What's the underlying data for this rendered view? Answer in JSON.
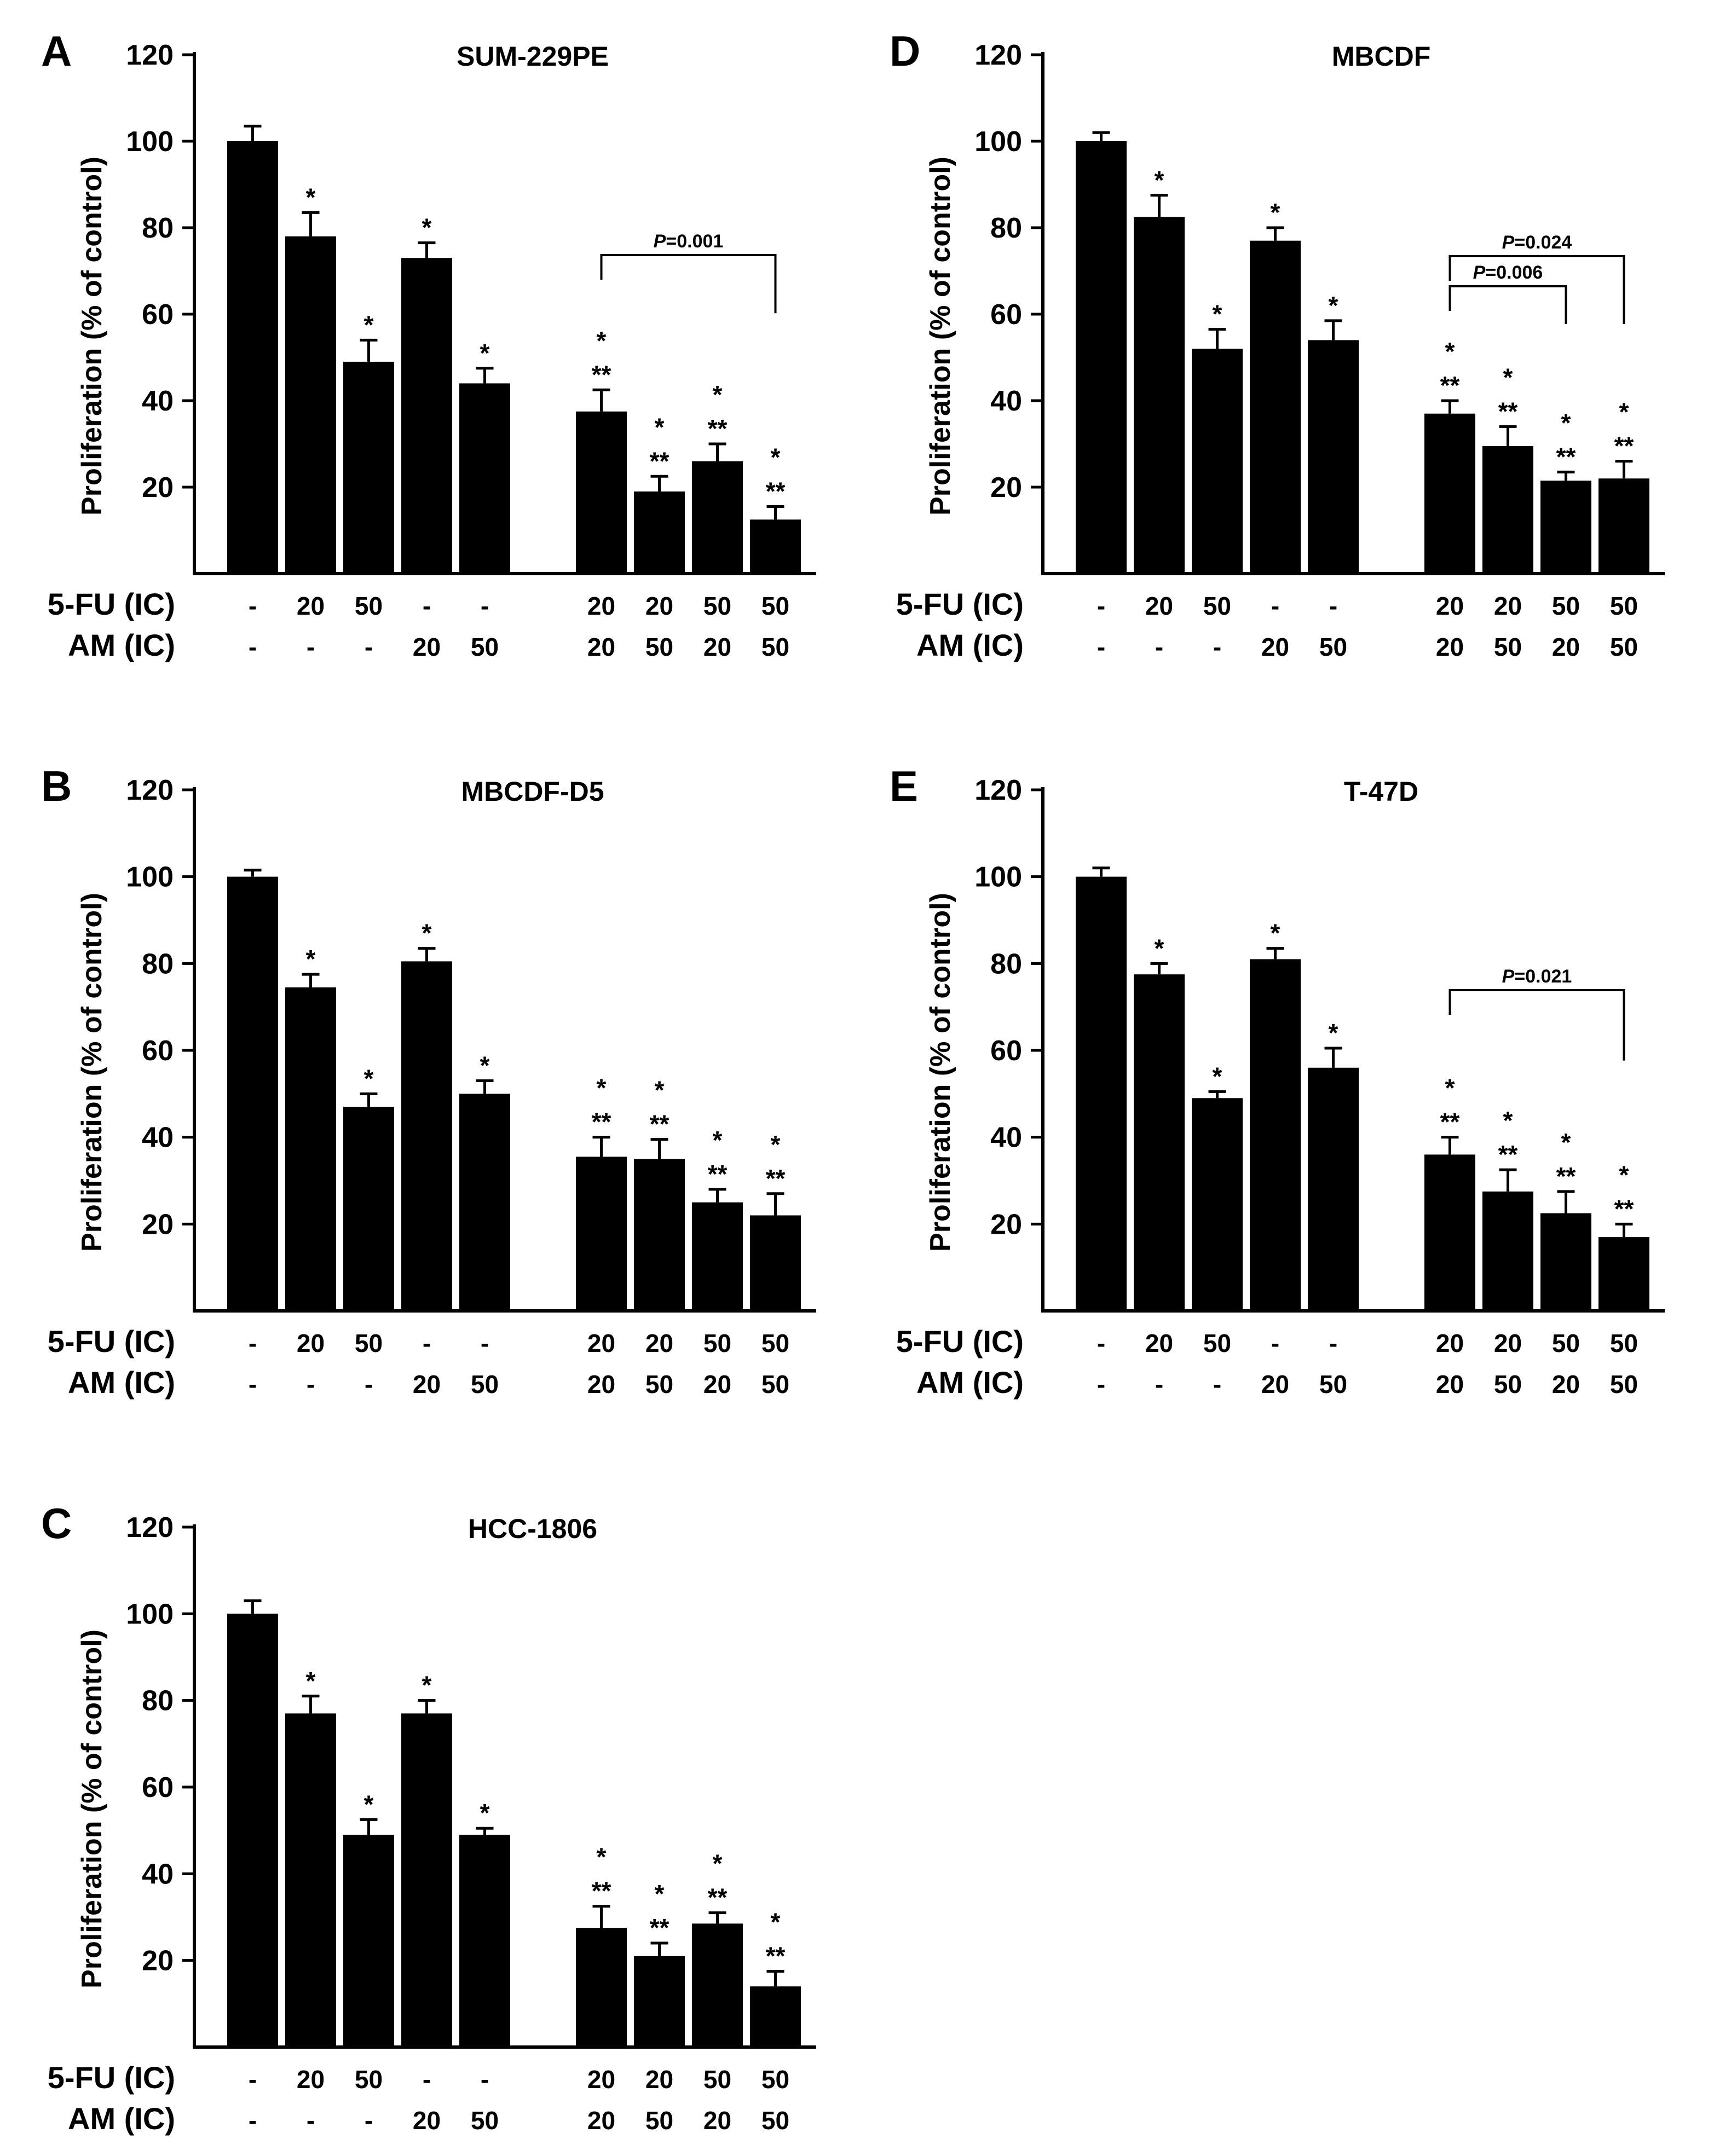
{
  "figure": {
    "row_labels": [
      "5-FU (IC)",
      "AM (IC)"
    ],
    "ylabel": "Proliferation (% of control)",
    "bar_color": "#000000",
    "panels": [
      {
        "letter": "A",
        "title": "SUM-229PE",
        "chart_data": {
          "type": "bar",
          "ylim": [
            0,
            120
          ],
          "yticks": [
            20,
            40,
            60,
            80,
            100,
            120
          ],
          "group_sizes": [
            5,
            4
          ],
          "fu_labels": [
            "-",
            "20",
            "50",
            "-",
            "-",
            "20",
            "20",
            "50",
            "50"
          ],
          "am_labels": [
            "-",
            "-",
            "-",
            "20",
            "50",
            "20",
            "50",
            "20",
            "50"
          ],
          "values": [
            100,
            78,
            49,
            73,
            44,
            37.5,
            19,
            26,
            12.5
          ],
          "errors": [
            3.5,
            5.5,
            5,
            3.5,
            3.5,
            5,
            3.5,
            4,
            3
          ],
          "single_star": [
            false,
            true,
            true,
            true,
            true,
            true,
            true,
            true,
            true
          ],
          "double_star": [
            false,
            false,
            false,
            false,
            false,
            true,
            true,
            true,
            true
          ],
          "brackets": [
            {
              "from": 5,
              "to": 8,
              "label": "P=0.001"
            }
          ]
        }
      },
      {
        "letter": "B",
        "title": "MBCDF-D5",
        "chart_data": {
          "type": "bar",
          "ylim": [
            0,
            120
          ],
          "yticks": [
            20,
            40,
            60,
            80,
            100,
            120
          ],
          "group_sizes": [
            5,
            4
          ],
          "fu_labels": [
            "-",
            "20",
            "50",
            "-",
            "-",
            "20",
            "20",
            "50",
            "50"
          ],
          "am_labels": [
            "-",
            "-",
            "-",
            "20",
            "50",
            "20",
            "50",
            "20",
            "50"
          ],
          "values": [
            100,
            74.5,
            47,
            80.5,
            50,
            35.5,
            35,
            25,
            22
          ],
          "errors": [
            1.5,
            3,
            3,
            3,
            3,
            4.5,
            4.5,
            3,
            5
          ],
          "single_star": [
            false,
            true,
            true,
            true,
            true,
            true,
            true,
            true,
            true
          ],
          "double_star": [
            false,
            false,
            false,
            false,
            false,
            true,
            true,
            true,
            true
          ],
          "brackets": []
        }
      },
      {
        "letter": "C",
        "title": "HCC-1806",
        "chart_data": {
          "type": "bar",
          "ylim": [
            0,
            120
          ],
          "yticks": [
            20,
            40,
            60,
            80,
            100,
            120
          ],
          "group_sizes": [
            5,
            4
          ],
          "fu_labels": [
            "-",
            "20",
            "50",
            "-",
            "-",
            "20",
            "20",
            "50",
            "50"
          ],
          "am_labels": [
            "-",
            "-",
            "-",
            "20",
            "50",
            "20",
            "50",
            "20",
            "50"
          ],
          "values": [
            100,
            77,
            49,
            77,
            49,
            27.5,
            21,
            28.5,
            14
          ],
          "errors": [
            3,
            4,
            3.5,
            3,
            1.5,
            5,
            3,
            2.5,
            3.5
          ],
          "single_star": [
            false,
            true,
            true,
            true,
            true,
            true,
            true,
            true,
            true
          ],
          "double_star": [
            false,
            false,
            false,
            false,
            false,
            true,
            true,
            true,
            true
          ],
          "brackets": []
        }
      },
      {
        "letter": "D",
        "title": "MBCDF",
        "chart_data": {
          "type": "bar",
          "ylim": [
            0,
            120
          ],
          "yticks": [
            20,
            40,
            60,
            80,
            100,
            120
          ],
          "group_sizes": [
            5,
            4
          ],
          "fu_labels": [
            "-",
            "20",
            "50",
            "-",
            "-",
            "20",
            "20",
            "50",
            "50"
          ],
          "am_labels": [
            "-",
            "-",
            "-",
            "20",
            "50",
            "20",
            "50",
            "20",
            "50"
          ],
          "values": [
            100,
            82.5,
            52,
            77,
            54,
            37,
            29.5,
            21.5,
            22
          ],
          "errors": [
            2,
            5,
            4.5,
            3,
            4.5,
            3,
            4.5,
            2,
            4
          ],
          "single_star": [
            false,
            true,
            true,
            true,
            true,
            true,
            true,
            true,
            true
          ],
          "double_star": [
            false,
            false,
            false,
            false,
            false,
            true,
            true,
            true,
            true
          ],
          "brackets": [
            {
              "from": 5,
              "to": 8,
              "label": "P=0.024"
            },
            {
              "from": 5,
              "to": 7,
              "label": "P=0.006"
            }
          ]
        }
      },
      {
        "letter": "E",
        "title": "T-47D",
        "chart_data": {
          "type": "bar",
          "ylim": [
            0,
            120
          ],
          "yticks": [
            20,
            40,
            60,
            80,
            100,
            120
          ],
          "group_sizes": [
            5,
            4
          ],
          "fu_labels": [
            "-",
            "20",
            "50",
            "-",
            "-",
            "20",
            "20",
            "50",
            "50"
          ],
          "am_labels": [
            "-",
            "-",
            "-",
            "20",
            "50",
            "20",
            "50",
            "20",
            "50"
          ],
          "values": [
            100,
            77.5,
            49,
            81,
            56,
            36,
            27.5,
            22.5,
            17
          ],
          "errors": [
            2,
            2.5,
            1.5,
            2.5,
            4.5,
            4,
            5,
            5,
            3
          ],
          "single_star": [
            false,
            true,
            true,
            true,
            true,
            true,
            true,
            true,
            true
          ],
          "double_star": [
            false,
            false,
            false,
            false,
            false,
            true,
            true,
            true,
            true
          ],
          "brackets": [
            {
              "from": 5,
              "to": 8,
              "label": "P=0.021"
            }
          ]
        }
      }
    ]
  }
}
